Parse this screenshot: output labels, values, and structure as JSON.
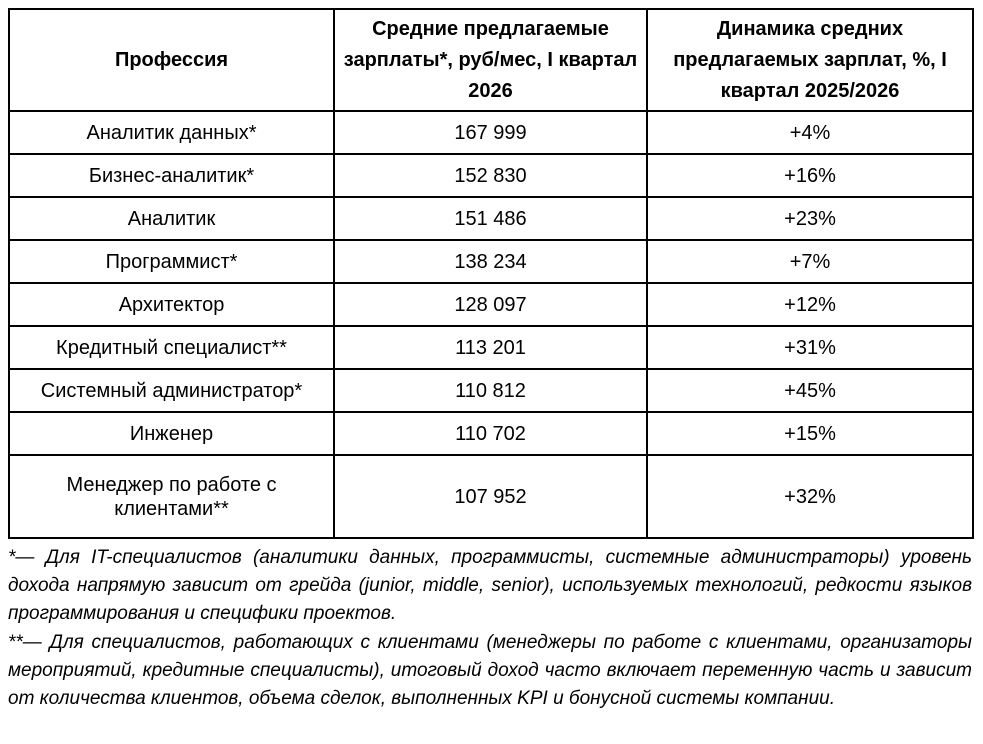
{
  "table": {
    "headers": [
      "Профессия",
      "Средние предлагаемые зарплаты*, руб/мес, I квартал 2026",
      "Динамика средних предлагаемых зарплат, %, I квартал 2025/2026"
    ],
    "rows": [
      {
        "profession": "Аналитик данных*",
        "salary": "167 999",
        "change": "+4%"
      },
      {
        "profession": "Бизнес-аналитик*",
        "salary": "152 830",
        "change": "+16%"
      },
      {
        "profession": "Аналитик",
        "salary": "151 486",
        "change": "+23%"
      },
      {
        "profession": "Программист*",
        "salary": "138 234",
        "change": "+7%"
      },
      {
        "profession": "Архитектор",
        "salary": "128 097",
        "change": "+12%"
      },
      {
        "profession": "Кредитный специалист**",
        "salary": "113 201",
        "change": "+31%"
      },
      {
        "profession": "Системный администратор*",
        "salary": "110 812",
        "change": "+45%"
      },
      {
        "profession": "Инженер",
        "salary": "110 702",
        "change": "+15%"
      },
      {
        "profession": "Менеджер по работе с клиентами**",
        "salary": "107 952",
        "change": "+32%"
      }
    ]
  },
  "footnotes": [
    "*— Для IT-специалистов (аналитики данных, программисты, системные администраторы) уровень дохода напрямую зависит от грейда (junior, middle, senior), используемых технологий, редкости языков программирования и специфики проектов.",
    "**— Для специалистов, работающих с клиентами (менеджеры по работе с клиентами, организаторы мероприятий, кредитные специалисты), итоговый доход часто включает переменную часть и зависит от количества клиентов, объема сделок, выполненных KPI и бонусной системы компании."
  ]
}
